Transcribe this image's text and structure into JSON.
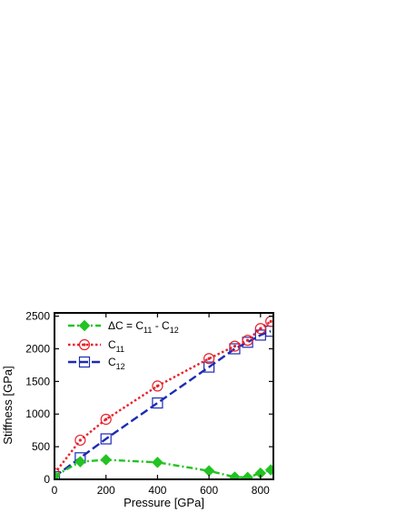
{
  "chart_data": {
    "type": "line",
    "xlabel": "Pressure [GPa]",
    "ylabel": "Stiffness [GPa]",
    "xlim": [
      0,
      850
    ],
    "ylim": [
      0,
      2550
    ],
    "x_ticks": [
      0,
      200,
      400,
      600,
      800
    ],
    "y_ticks": [
      0,
      500,
      1000,
      1500,
      2000,
      2500
    ],
    "x_tick_labels": [
      "0",
      "200",
      "400",
      "600",
      "800"
    ],
    "y_tick_labels": [
      "0",
      "500",
      "1000",
      "1500",
      "2000",
      "2500"
    ],
    "legend_position": "top-left",
    "grid": false,
    "series": [
      {
        "name_parts": [
          "ΔC = C",
          "11",
          " - C",
          "12"
        ],
        "color": "#22c322",
        "line_style": "dash-dot",
        "marker": "diamond",
        "x": [
          0,
          100,
          200,
          400,
          600,
          700,
          750,
          800,
          840
        ],
        "y": [
          50,
          270,
          300,
          260,
          130,
          35,
          30,
          95,
          145
        ]
      },
      {
        "name_parts": [
          "C",
          "11"
        ],
        "color": "#e8202a",
        "line_style": "dotted",
        "marker": "circle-dot",
        "x": [
          0,
          100,
          200,
          400,
          600,
          700,
          750,
          800,
          840
        ],
        "y": [
          90,
          600,
          920,
          1430,
          1850,
          2040,
          2130,
          2310,
          2420
        ]
      },
      {
        "name_parts": [
          "C",
          "12"
        ],
        "color": "#1c2bb3",
        "line_style": "dashed",
        "marker": "square",
        "x": [
          0,
          100,
          200,
          400,
          600,
          700,
          750,
          800,
          840
        ],
        "y": [
          40,
          330,
          620,
          1170,
          1720,
          2000,
          2100,
          2210,
          2270
        ]
      }
    ]
  }
}
